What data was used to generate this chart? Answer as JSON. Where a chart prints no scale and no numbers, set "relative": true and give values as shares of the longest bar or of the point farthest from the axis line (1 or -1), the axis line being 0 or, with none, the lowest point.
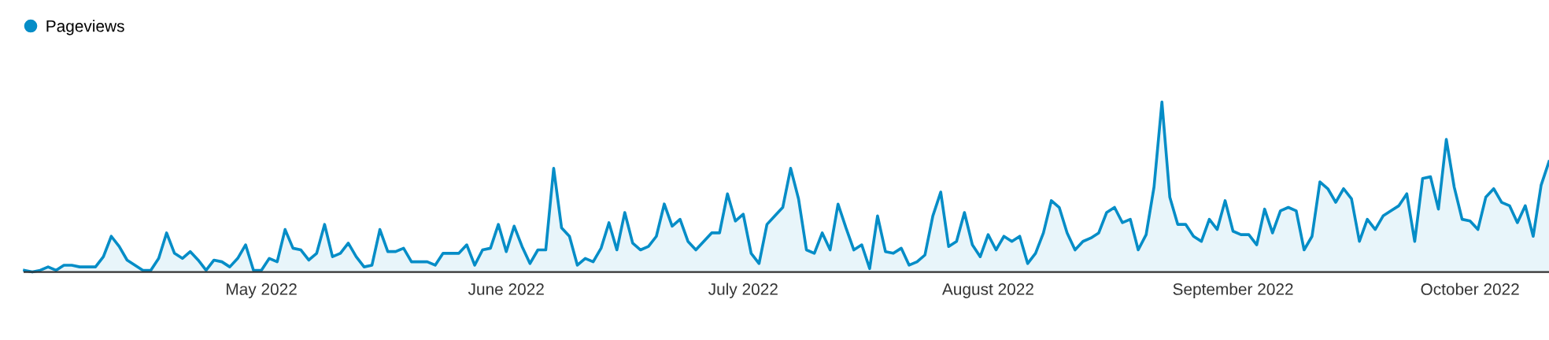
{
  "chart_data": {
    "type": "area",
    "relative": true,
    "legend": "top left",
    "tick_labels": "x",
    "xlim": [
      "2022-04-01",
      "2022-10-11"
    ],
    "xticks": [
      {
        "value": "2022-05-01",
        "label": "May 2022"
      },
      {
        "value": "2022-06-01",
        "label": "June 2022"
      },
      {
        "value": "2022-07-01",
        "label": "July 2022"
      },
      {
        "value": "2022-08-01",
        "label": "August 2022"
      },
      {
        "value": "2022-09-01",
        "label": "September 2022"
      },
      {
        "value": "2022-10-01",
        "label": "October 2022"
      }
    ],
    "x": [
      "2022-04-01",
      "2022-04-02",
      "2022-04-03",
      "2022-04-04",
      "2022-04-05",
      "2022-04-06",
      "2022-04-07",
      "2022-04-08",
      "2022-04-09",
      "2022-04-10",
      "2022-04-11",
      "2022-04-12",
      "2022-04-13",
      "2022-04-14",
      "2022-04-15",
      "2022-04-16",
      "2022-04-17",
      "2022-04-18",
      "2022-04-19",
      "2022-04-20",
      "2022-04-21",
      "2022-04-22",
      "2022-04-23",
      "2022-04-24",
      "2022-04-25",
      "2022-04-26",
      "2022-04-27",
      "2022-04-28",
      "2022-04-29",
      "2022-04-30",
      "2022-05-01",
      "2022-05-02",
      "2022-05-03",
      "2022-05-04",
      "2022-05-05",
      "2022-05-06",
      "2022-05-07",
      "2022-05-08",
      "2022-05-09",
      "2022-05-10",
      "2022-05-11",
      "2022-05-12",
      "2022-05-13",
      "2022-05-14",
      "2022-05-15",
      "2022-05-16",
      "2022-05-17",
      "2022-05-18",
      "2022-05-19",
      "2022-05-20",
      "2022-05-21",
      "2022-05-22",
      "2022-05-23",
      "2022-05-24",
      "2022-05-25",
      "2022-05-26",
      "2022-05-27",
      "2022-05-28",
      "2022-05-29",
      "2022-05-30",
      "2022-05-31",
      "2022-06-01",
      "2022-06-02",
      "2022-06-03",
      "2022-06-04",
      "2022-06-05",
      "2022-06-06",
      "2022-06-07",
      "2022-06-08",
      "2022-06-09",
      "2022-06-10",
      "2022-06-11",
      "2022-06-12",
      "2022-06-13",
      "2022-06-14",
      "2022-06-15",
      "2022-06-16",
      "2022-06-17",
      "2022-06-18",
      "2022-06-19",
      "2022-06-20",
      "2022-06-21",
      "2022-06-22",
      "2022-06-23",
      "2022-06-24",
      "2022-06-25",
      "2022-06-26",
      "2022-06-27",
      "2022-06-28",
      "2022-06-29",
      "2022-06-30",
      "2022-07-01",
      "2022-07-02",
      "2022-07-03",
      "2022-07-04",
      "2022-07-05",
      "2022-07-06",
      "2022-07-07",
      "2022-07-08",
      "2022-07-09",
      "2022-07-10",
      "2022-07-11",
      "2022-07-12",
      "2022-07-13",
      "2022-07-14",
      "2022-07-15",
      "2022-07-16",
      "2022-07-17",
      "2022-07-18",
      "2022-07-19",
      "2022-07-20",
      "2022-07-21",
      "2022-07-22",
      "2022-07-23",
      "2022-07-24",
      "2022-07-25",
      "2022-07-26",
      "2022-07-27",
      "2022-07-28",
      "2022-07-29",
      "2022-07-30",
      "2022-07-31",
      "2022-08-01",
      "2022-08-02",
      "2022-08-03",
      "2022-08-04",
      "2022-08-05",
      "2022-08-06",
      "2022-08-07",
      "2022-08-08",
      "2022-08-09",
      "2022-08-10",
      "2022-08-11",
      "2022-08-12",
      "2022-08-13",
      "2022-08-14",
      "2022-08-15",
      "2022-08-16",
      "2022-08-17",
      "2022-08-18",
      "2022-08-19",
      "2022-08-20",
      "2022-08-21",
      "2022-08-22",
      "2022-08-23",
      "2022-08-24",
      "2022-08-25",
      "2022-08-26",
      "2022-08-27",
      "2022-08-28",
      "2022-08-29",
      "2022-08-30",
      "2022-08-31",
      "2022-09-01",
      "2022-09-02",
      "2022-09-03",
      "2022-09-04",
      "2022-09-05",
      "2022-09-06",
      "2022-09-07",
      "2022-09-08",
      "2022-09-09",
      "2022-09-10",
      "2022-09-11",
      "2022-09-12",
      "2022-09-13",
      "2022-09-14",
      "2022-09-15",
      "2022-09-16",
      "2022-09-17",
      "2022-09-18",
      "2022-09-19",
      "2022-09-20",
      "2022-09-21",
      "2022-09-22",
      "2022-09-23",
      "2022-09-24",
      "2022-09-25",
      "2022-09-26",
      "2022-09-27",
      "2022-09-28",
      "2022-09-29",
      "2022-09-30",
      "2022-10-01",
      "2022-10-02",
      "2022-10-03",
      "2022-10-04",
      "2022-10-05",
      "2022-10-06",
      "2022-10-07",
      "2022-10-08",
      "2022-10-09",
      "2022-10-10",
      "2022-10-11"
    ],
    "series": [
      {
        "name": "Pageviews",
        "color": "#058dc7",
        "values": [
          0.01,
          0,
          0.01,
          0.03,
          0.01,
          0.04,
          0.04,
          0.03,
          0.03,
          0.03,
          0.09,
          0.21,
          0.15,
          0.07,
          0.04,
          0.01,
          0.01,
          0.08,
          0.23,
          0.11,
          0.08,
          0.12,
          0.07,
          0.01,
          0.07,
          0.06,
          0.03,
          0.08,
          0.16,
          0.01,
          0.01,
          0.08,
          0.06,
          0.25,
          0.14,
          0.13,
          0.07,
          0.11,
          0.28,
          0.09,
          0.11,
          0.17,
          0.09,
          0.03,
          0.04,
          0.25,
          0.12,
          0.12,
          0.14,
          0.06,
          0.06,
          0.06,
          0.04,
          0.11,
          0.11,
          0.11,
          0.16,
          0.04,
          0.13,
          0.14,
          0.28,
          0.12,
          0.27,
          0.15,
          0.05,
          0.13,
          0.13,
          0.61,
          0.26,
          0.21,
          0.04,
          0.08,
          0.06,
          0.14,
          0.29,
          0.13,
          0.35,
          0.17,
          0.13,
          0.15,
          0.21,
          0.4,
          0.27,
          0.31,
          0.18,
          0.13,
          0.18,
          0.23,
          0.23,
          0.46,
          0.3,
          0.34,
          0.11,
          0.05,
          0.28,
          0.33,
          0.38,
          0.61,
          0.43,
          0.13,
          0.11,
          0.23,
          0.13,
          0.4,
          0.26,
          0.13,
          0.16,
          0.02,
          0.33,
          0.12,
          0.11,
          0.14,
          0.04,
          0.06,
          0.1,
          0.33,
          0.47,
          0.15,
          0.18,
          0.35,
          0.16,
          0.09,
          0.22,
          0.13,
          0.21,
          0.18,
          0.21,
          0.05,
          0.11,
          0.23,
          0.42,
          0.38,
          0.23,
          0.13,
          0.18,
          0.2,
          0.23,
          0.35,
          0.38,
          0.29,
          0.31,
          0.13,
          0.22,
          0.5,
          1,
          0.44,
          0.28,
          0.28,
          0.21,
          0.18,
          0.31,
          0.25,
          0.42,
          0.24,
          0.22,
          0.22,
          0.16,
          0.37,
          0.23,
          0.36,
          0.38,
          0.36,
          0.13,
          0.21,
          0.53,
          0.49,
          0.41,
          0.49,
          0.43,
          0.18,
          0.31,
          0.25,
          0.33,
          0.36,
          0.39,
          0.46,
          0.18,
          0.55,
          0.56,
          0.37,
          0.78,
          0.5,
          0.31,
          0.3,
          0.25,
          0.44,
          0.49,
          0.41,
          0.39,
          0.29,
          0.39,
          0.21,
          0.51,
          0.65
        ]
      }
    ]
  }
}
